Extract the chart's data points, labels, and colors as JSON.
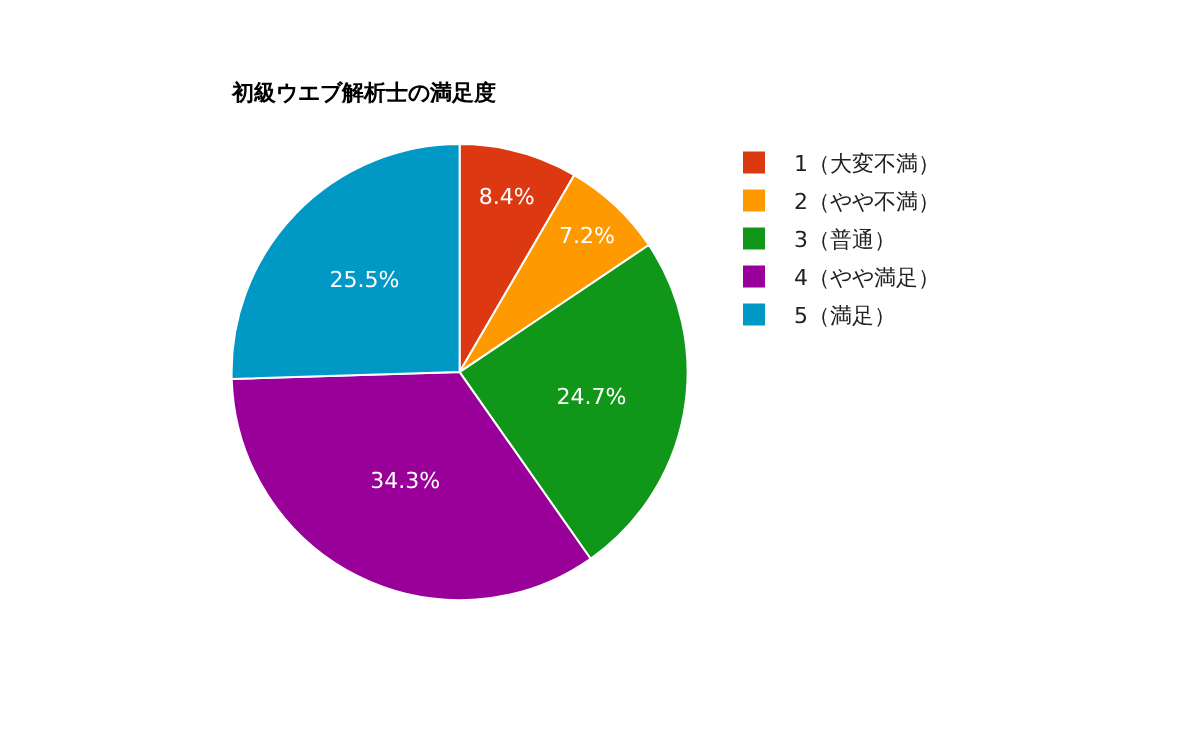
{
  "chart_data": {
    "type": "pie",
    "title": "初級ウエブ解析士の満足度",
    "categories": [
      "1（大変不満）",
      "2（やや不満）",
      "3（普通）",
      "4（やや満足）",
      "5（満足）"
    ],
    "values": [
      8.4,
      7.2,
      24.7,
      34.3,
      25.5
    ],
    "value_labels": [
      "8.4%",
      "7.2%",
      "24.7%",
      "34.3%",
      "25.5%"
    ],
    "colors": [
      "#dc3912",
      "#ff9900",
      "#109618",
      "#990099",
      "#0099c6"
    ],
    "legend": "right"
  }
}
